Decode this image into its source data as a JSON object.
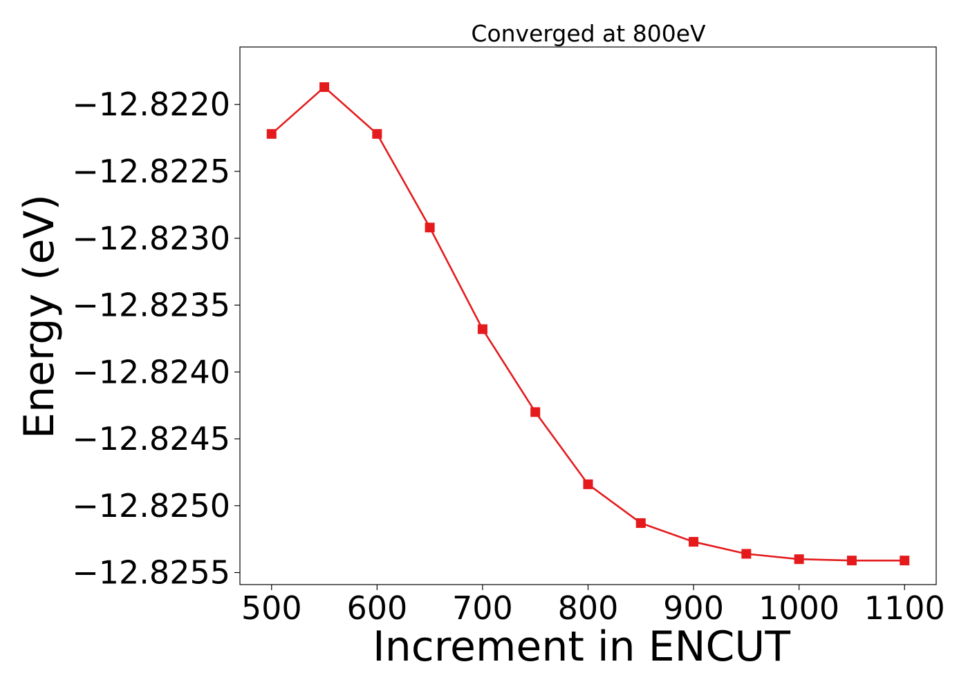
{
  "chart_data": {
    "type": "line",
    "title": "Converged at 800eV",
    "xlabel": "Increment in ENCUT",
    "ylabel": "Energy (eV)",
    "x": [
      500,
      550,
      600,
      650,
      700,
      750,
      800,
      850,
      900,
      950,
      1000,
      1050,
      1100
    ],
    "series": [
      {
        "values": [
          -12.82222,
          -12.82187,
          -12.82222,
          -12.82292,
          -12.82368,
          -12.8243,
          -12.82484,
          -12.82513,
          -12.82527,
          -12.82536,
          -12.8254,
          -12.82541,
          -12.82541
        ],
        "color": "#e41a1c",
        "marker": "square"
      }
    ],
    "xlim": [
      470,
      1130
    ],
    "ylim": [
      -12.82559,
      -12.82157
    ],
    "xticks": [
      500,
      600,
      700,
      800,
      900,
      1000,
      1100
    ],
    "xtick_labels": [
      "500",
      "600",
      "700",
      "800",
      "900",
      "1000",
      "1100"
    ],
    "yticks": [
      -12.822,
      -12.8225,
      -12.823,
      -12.8235,
      -12.824,
      -12.8245,
      -12.825,
      -12.8255
    ],
    "ytick_labels": [
      "−12.8220",
      "−12.8225",
      "−12.8230",
      "−12.8235",
      "−12.8240",
      "−12.8245",
      "−12.8250",
      "−12.8255"
    ],
    "grid": false,
    "legend": false
  }
}
